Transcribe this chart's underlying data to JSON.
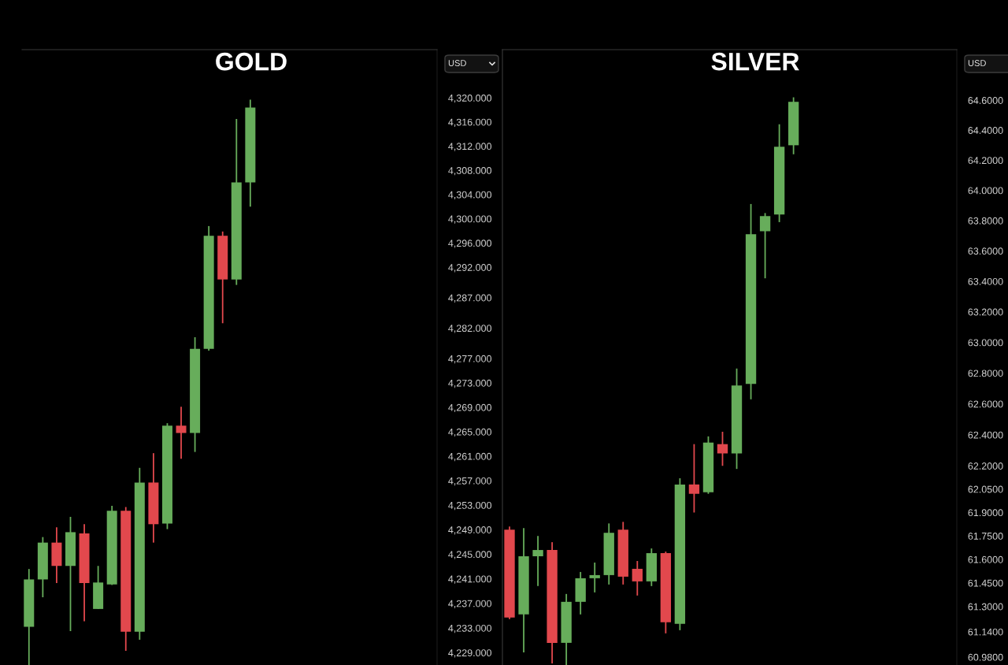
{
  "chart_data": [
    {
      "type": "candlestick",
      "title": "GOLD",
      "categories": [
        null,
        null,
        null,
        null,
        null,
        null,
        null,
        null,
        null,
        null,
        null,
        null,
        null,
        null,
        null,
        null,
        null,
        null,
        null,
        null,
        null,
        null,
        null,
        null,
        null,
        null,
        null,
        null,
        null,
        null
      ],
      "ohlc": [
        [
          4233.2,
          4242.6,
          4227,
          4240.9
        ],
        [
          4240.9,
          4247.8,
          4238.0,
          4246.9
        ],
        [
          4246.9,
          4249.4,
          4240.3,
          4243.1
        ],
        [
          4243.1,
          4251.1,
          4232.5,
          4248.6
        ],
        [
          4248.4,
          4249.9,
          4234.1,
          4240.3
        ],
        [
          4236.1,
          4243.1,
          4236.1,
          4240.4
        ],
        [
          4240.1,
          4252.9,
          4240.0,
          4252.1
        ],
        [
          4252.1,
          4252.7,
          4229.3,
          4232.4
        ],
        [
          4232.4,
          4259.1,
          4231.1,
          4256.7
        ],
        [
          4256.7,
          4261.5,
          4246.9,
          4249.9
        ],
        [
          4250.0,
          4266.4,
          4249.1,
          4266.0
        ],
        [
          4266.0,
          4269.1,
          4260.6,
          4264.8
        ],
        [
          4264.8,
          4280.5,
          4261.7,
          4278.6
        ],
        [
          4278.6,
          4298.8,
          4278.3,
          4297.2
        ],
        [
          4297.2,
          4297.9,
          4282.8,
          4290.0
        ],
        [
          4290.0,
          4316.5,
          4289.1,
          4306.0
        ],
        [
          4306.0,
          4319.7,
          4302.0,
          4318.4
        ],
        null,
        null,
        null,
        null,
        null,
        null,
        null,
        null,
        null,
        null,
        null,
        null,
        null
      ],
      "colors": [
        "#67ad5b",
        "#67ad5b",
        "#e2484d",
        "#67ad5b",
        "#e2484d",
        "#67ad5b",
        "#67ad5b",
        "#e2484d",
        "#67ad5b",
        "#e2484d",
        "#67ad5b",
        "#e2484d",
        "#67ad5b",
        "#67ad5b",
        "#e2484d",
        "#67ad5b",
        "#67ad5b",
        null,
        null,
        null,
        null,
        null,
        null,
        null,
        null,
        null,
        null,
        null,
        null,
        null
      ],
      "log": true,
      "ylim": [
        4227,
        4328
      ],
      "yticks": [
        {
          "value": 4320,
          "label": "4,320.000"
        },
        {
          "value": 4316,
          "label": "4,316.000"
        },
        {
          "value": 4312,
          "label": "4,312.000"
        },
        {
          "value": 4308,
          "label": "4,308.000"
        },
        {
          "value": 4304,
          "label": "4,304.000"
        },
        {
          "value": 4300,
          "label": "4,300.000"
        },
        {
          "value": 4296,
          "label": "4,296.000"
        },
        {
          "value": 4292,
          "label": "4,292.000"
        },
        {
          "value": 4287,
          "label": "4,287.000"
        },
        {
          "value": 4282,
          "label": "4,282.000"
        },
        {
          "value": 4277,
          "label": "4,277.000"
        },
        {
          "value": 4273,
          "label": "4,273.000"
        },
        {
          "value": 4269,
          "label": "4,269.000"
        },
        {
          "value": 4265,
          "label": "4,265.000"
        },
        {
          "value": 4261,
          "label": "4,261.000"
        },
        {
          "value": 4257,
          "label": "4,257.000"
        },
        {
          "value": 4253,
          "label": "4,253.000"
        },
        {
          "value": 4249,
          "label": "4,249.000"
        },
        {
          "value": 4245,
          "label": "4,245.000"
        },
        {
          "value": 4241,
          "label": "4,241.000"
        },
        {
          "value": 4237,
          "label": "4,237.000"
        },
        {
          "value": 4233,
          "label": "4,233.000"
        },
        {
          "value": 4229,
          "label": "4,229.000"
        }
      ],
      "tick_labels": "y",
      "annotations": [
        "USD"
      ]
    },
    {
      "type": "candlestick",
      "title": "SILVER",
      "categories": [
        null,
        null,
        null,
        null,
        null,
        null,
        null,
        null,
        null,
        null,
        null,
        null,
        null,
        null,
        null,
        null,
        null,
        null,
        null,
        null,
        null,
        null,
        null,
        null,
        null,
        null,
        null,
        null,
        null,
        null,
        null,
        null
      ],
      "ohlc": [
        [
          61.79,
          61.81,
          61.22,
          61.23
        ],
        [
          61.25,
          61.8,
          61.01,
          61.62
        ],
        [
          61.62,
          61.75,
          61.43,
          61.66
        ],
        [
          61.66,
          61.71,
          60.94,
          61.07
        ],
        [
          61.07,
          61.38,
          60.93,
          61.33
        ],
        [
          61.33,
          61.52,
          61.25,
          61.48
        ],
        [
          61.48,
          61.58,
          61.39,
          61.5
        ],
        [
          61.5,
          61.83,
          61.44,
          61.77
        ],
        [
          61.79,
          61.84,
          61.44,
          61.49
        ],
        [
          61.54,
          61.59,
          61.37,
          61.46
        ],
        [
          61.46,
          61.67,
          61.43,
          61.64
        ],
        [
          61.64,
          61.65,
          61.13,
          61.2
        ],
        [
          61.19,
          62.12,
          61.15,
          62.08
        ],
        [
          62.08,
          62.34,
          61.9,
          62.02
        ],
        [
          62.03,
          62.39,
          62.02,
          62.35
        ],
        [
          62.34,
          62.42,
          62.2,
          62.28
        ],
        [
          62.28,
          62.83,
          62.18,
          62.72
        ],
        [
          62.73,
          63.91,
          62.63,
          63.71
        ],
        [
          63.73,
          63.85,
          63.42,
          63.83
        ],
        [
          63.84,
          64.44,
          63.79,
          64.29
        ],
        [
          64.3,
          64.62,
          64.24,
          64.59
        ],
        null,
        null,
        null,
        null,
        null,
        null,
        null,
        null,
        null,
        null,
        null
      ],
      "colors": [
        "#e2484d",
        "#67ad5b",
        "#67ad5b",
        "#e2484d",
        "#67ad5b",
        "#67ad5b",
        "#67ad5b",
        "#67ad5b",
        "#e2484d",
        "#e2484d",
        "#67ad5b",
        "#e2484d",
        "#67ad5b",
        "#e2484d",
        "#67ad5b",
        "#e2484d",
        "#67ad5b",
        "#67ad5b",
        "#67ad5b",
        "#67ad5b",
        "#67ad5b",
        null,
        null,
        null,
        null,
        null,
        null,
        null,
        null,
        null,
        null,
        null
      ],
      "log": true,
      "ylim": [
        60.93,
        64.94
      ],
      "yticks": [
        {
          "value": 64.6,
          "label": "64.6000"
        },
        {
          "value": 64.4,
          "label": "64.4000"
        },
        {
          "value": 64.2,
          "label": "64.2000"
        },
        {
          "value": 64.0,
          "label": "64.0000"
        },
        {
          "value": 63.8,
          "label": "63.8000"
        },
        {
          "value": 63.6,
          "label": "63.6000"
        },
        {
          "value": 63.4,
          "label": "63.4000"
        },
        {
          "value": 63.2,
          "label": "63.2000"
        },
        {
          "value": 63.0,
          "label": "63.0000"
        },
        {
          "value": 62.8,
          "label": "62.8000"
        },
        {
          "value": 62.6,
          "label": "62.6000"
        },
        {
          "value": 62.4,
          "label": "62.4000"
        },
        {
          "value": 62.2,
          "label": "62.2000"
        },
        {
          "value": 62.05,
          "label": "62.0500"
        },
        {
          "value": 61.9,
          "label": "61.9000"
        },
        {
          "value": 61.75,
          "label": "61.7500"
        },
        {
          "value": 61.6,
          "label": "61.6000"
        },
        {
          "value": 61.45,
          "label": "61.4500"
        },
        {
          "value": 61.3,
          "label": "61.3000"
        },
        {
          "value": 61.14,
          "label": "61.1400"
        },
        {
          "value": 60.98,
          "label": "60.9800"
        }
      ],
      "tick_labels": "y",
      "annotations": [
        "USD"
      ]
    }
  ]
}
